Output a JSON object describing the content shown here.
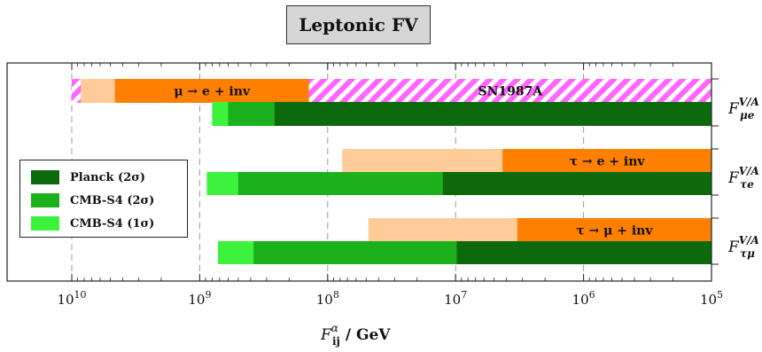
{
  "title": "Leptonic FV",
  "chart_data": {
    "type": "bar",
    "orientation": "horizontal",
    "x_scale": "log",
    "x_reversed": true,
    "xlim": [
      10000000000.0,
      100000
    ],
    "xlabel_main": "F",
    "xlabel_sup": "α",
    "xlabel_sub": "ij",
    "xlabel_tail": " / GeV",
    "x_ticks": [
      {
        "base": "10",
        "exp": "10",
        "value": 10000000000.0
      },
      {
        "base": "10",
        "exp": "9",
        "value": 1000000000.0
      },
      {
        "base": "10",
        "exp": "8",
        "value": 100000000.0
      },
      {
        "base": "10",
        "exp": "7",
        "value": 10000000.0
      },
      {
        "base": "10",
        "exp": "6",
        "value": 1000000.0
      },
      {
        "base": "10",
        "exp": "5",
        "value": 100000.0
      }
    ],
    "grid": "vertical-dashed",
    "legend_position": "left-middle",
    "legend": [
      {
        "label": "Planck (2σ)",
        "color": "#0c6a0c"
      },
      {
        "label": "CMB-S4 (2σ)",
        "color": "#1cb01c"
      },
      {
        "label": "CMB-S4 (1σ)",
        "color": "#3df23d"
      }
    ],
    "rows": [
      {
        "label_main": "F",
        "label_sup": "V/A",
        "label_sub": "μe",
        "constraints": [
          {
            "from": 10000000000.0,
            "to": 100000,
            "kind": "hatched",
            "text": ""
          },
          {
            "from": 8500000000.0,
            "to": 4600000000.0,
            "kind": "weak",
            "text": ""
          },
          {
            "from": 4600000000.0,
            "to": 140000000.0,
            "kind": "lab",
            "text": "μ → e + inv"
          },
          {
            "from": 140000000.0,
            "to": 100000,
            "kind": "hatched",
            "text": "SN1987A"
          }
        ],
        "cosmo": [
          {
            "from": 800000000.0,
            "to": 100000,
            "kind": "cmb1"
          },
          {
            "from": 600000000.0,
            "to": 100000,
            "kind": "cmb2"
          },
          {
            "from": 260000000.0,
            "to": 100000,
            "kind": "planck"
          }
        ]
      },
      {
        "label_main": "F",
        "label_sup": "V/A",
        "label_sub": "τe",
        "constraints": [
          {
            "from": 77000000.0,
            "to": 4300000.0,
            "kind": "weak",
            "text": ""
          },
          {
            "from": 4300000.0,
            "to": 100000,
            "kind": "lab",
            "text": "τ → e + inv"
          }
        ],
        "cosmo": [
          {
            "from": 880000000.0,
            "to": 100000,
            "kind": "cmb1"
          },
          {
            "from": 500000000.0,
            "to": 100000,
            "kind": "cmb2"
          },
          {
            "from": 12600000.0,
            "to": 100000,
            "kind": "planck"
          }
        ]
      },
      {
        "label_main": "F",
        "label_sup": "V/A",
        "label_sub": "τμ",
        "constraints": [
          {
            "from": 48000000.0,
            "to": 3300000.0,
            "kind": "weak",
            "text": ""
          },
          {
            "from": 3300000.0,
            "to": 100000,
            "kind": "lab",
            "text": "τ → μ + inv"
          }
        ],
        "cosmo": [
          {
            "from": 720000000.0,
            "to": 100000,
            "kind": "cmb1"
          },
          {
            "from": 380000000.0,
            "to": 100000,
            "kind": "cmb2"
          },
          {
            "from": 9800000.0,
            "to": 100000,
            "kind": "planck"
          }
        ]
      }
    ]
  },
  "colors": {
    "planck": "#0c6a0c",
    "cmb2": "#1cb01c",
    "cmb1": "#3df23d",
    "lab": "#ff8000",
    "weak": "#ffcc99",
    "hatch_a": "#ff66ff",
    "hatch_b": "#ffffff",
    "grid": "#9a9a9a",
    "axis": "#222222"
  }
}
